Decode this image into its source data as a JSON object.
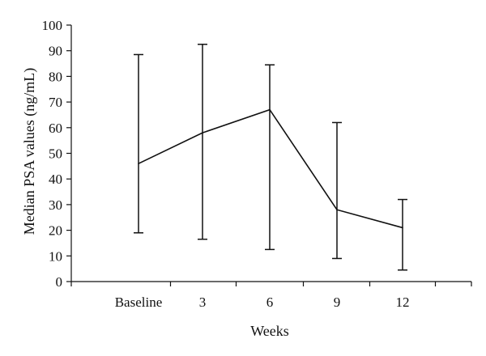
{
  "chart_data": {
    "type": "line",
    "xlabel": "Weeks",
    "ylabel": "Median PSA values (ng/mL)",
    "ylim": [
      0,
      100
    ],
    "yticks": [
      "0",
      "10",
      "20",
      "30",
      "40",
      "50",
      "60",
      "70",
      "80",
      "90",
      "100"
    ],
    "categories": [
      "Baseline",
      "3",
      "6",
      "9",
      "12"
    ],
    "values": [
      46,
      58,
      67,
      28,
      21
    ],
    "error_low": [
      19,
      16.5,
      12.5,
      9,
      4.5
    ],
    "error_high": [
      88.5,
      92.5,
      84.5,
      62,
      32
    ],
    "grid": false
  }
}
